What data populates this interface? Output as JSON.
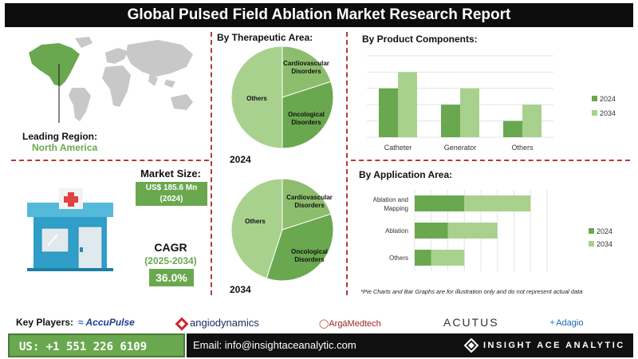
{
  "header": {
    "title": "Global Pulsed Field Ablation Market Research Report"
  },
  "region": {
    "label": "Leading Region:",
    "value": "North America"
  },
  "market": {
    "size_label": "Market Size:",
    "size_value": "US$ 185.6 Mn",
    "size_year": "(2024)",
    "cagr_label": "CAGR",
    "cagr_period": "(2025-2034)",
    "cagr_value": "36.0%"
  },
  "therapeutic": {
    "title": "By  Therapeutic Area:"
  },
  "components": {
    "title": "By Product Components:"
  },
  "application": {
    "title": "By Application Area:"
  },
  "note": "*Pie Charts and Bar Graphs are for illustration only and do not represent actual data",
  "players": {
    "label": "Key Players:",
    "names": [
      "AccuPulse",
      "angiodynamics",
      "ArgáMedtech",
      "ACUTUS",
      "Adagio"
    ]
  },
  "footer": {
    "phone": "US: +1 551 226 6109",
    "email": "Email: info@insightaceanalytic.com",
    "brand": "INSIGHT ACE ANALYTIC"
  },
  "colors": {
    "dark_green": "#6aa84f",
    "light_green": "#a9d18e",
    "pie_mid": "#8cbd6d"
  },
  "chart_data": [
    {
      "type": "pie",
      "title": "2024",
      "labels": [
        "Cardiovascular Disorders",
        "Oncological Disorders",
        "Others"
      ],
      "values": [
        20,
        30,
        50
      ]
    },
    {
      "type": "pie",
      "title": "2034",
      "labels": [
        "Cardiovascular Disorders",
        "Oncological Disorders",
        "Others"
      ],
      "values": [
        20,
        35,
        45
      ]
    },
    {
      "type": "bar",
      "categories": [
        "Catheter",
        "Generator",
        "Others"
      ],
      "series": [
        {
          "name": "2024",
          "values": [
            3,
            2,
            1
          ]
        },
        {
          "name": "2034",
          "values": [
            4,
            3,
            2
          ]
        }
      ],
      "legend": "right"
    },
    {
      "type": "bar",
      "orientation": "horizontal",
      "stacked": true,
      "categories": [
        "Ablation and Mapping",
        "Ablation",
        "Others"
      ],
      "series": [
        {
          "name": "2024",
          "values": [
            3,
            2,
            1
          ]
        },
        {
          "name": "2034",
          "values": [
            4,
            3,
            2
          ]
        }
      ],
      "legend": "right"
    }
  ]
}
